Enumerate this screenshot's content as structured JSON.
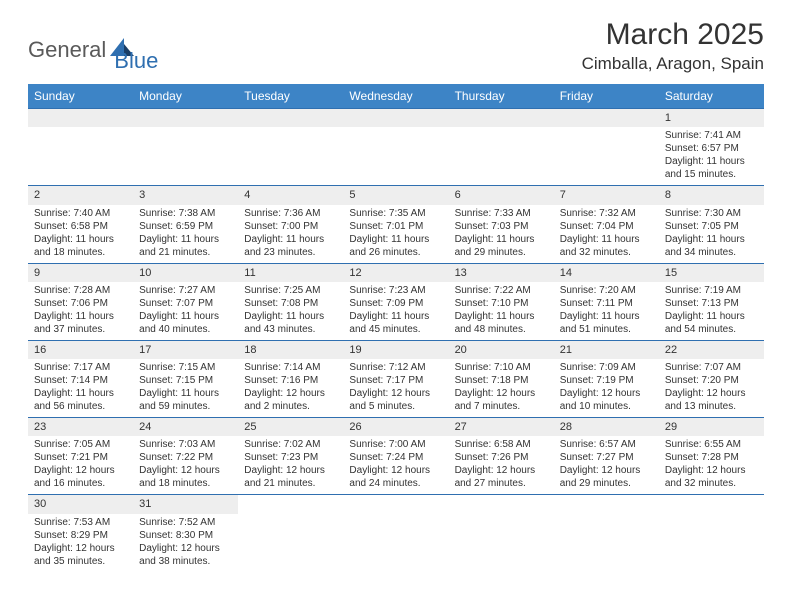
{
  "logo": {
    "text1": "General",
    "text2": "Blue",
    "tri_color1": "#2f6fb0",
    "tri_color2": "#1a3e66"
  },
  "title": "March 2025",
  "location": "Cimballa, Aragon, Spain",
  "weekdays": [
    "Sunday",
    "Monday",
    "Tuesday",
    "Wednesday",
    "Thursday",
    "Friday",
    "Saturday"
  ],
  "colors": {
    "header_bg": "#3d84c6",
    "border": "#2f6fb0",
    "daynum_bg": "#eeeeee"
  },
  "weeks": [
    [
      null,
      null,
      null,
      null,
      null,
      null,
      {
        "n": "1",
        "sunrise": "7:41 AM",
        "sunset": "6:57 PM",
        "daylight": "11 hours and 15 minutes."
      }
    ],
    [
      {
        "n": "2",
        "sunrise": "7:40 AM",
        "sunset": "6:58 PM",
        "daylight": "11 hours and 18 minutes."
      },
      {
        "n": "3",
        "sunrise": "7:38 AM",
        "sunset": "6:59 PM",
        "daylight": "11 hours and 21 minutes."
      },
      {
        "n": "4",
        "sunrise": "7:36 AM",
        "sunset": "7:00 PM",
        "daylight": "11 hours and 23 minutes."
      },
      {
        "n": "5",
        "sunrise": "7:35 AM",
        "sunset": "7:01 PM",
        "daylight": "11 hours and 26 minutes."
      },
      {
        "n": "6",
        "sunrise": "7:33 AM",
        "sunset": "7:03 PM",
        "daylight": "11 hours and 29 minutes."
      },
      {
        "n": "7",
        "sunrise": "7:32 AM",
        "sunset": "7:04 PM",
        "daylight": "11 hours and 32 minutes."
      },
      {
        "n": "8",
        "sunrise": "7:30 AM",
        "sunset": "7:05 PM",
        "daylight": "11 hours and 34 minutes."
      }
    ],
    [
      {
        "n": "9",
        "sunrise": "7:28 AM",
        "sunset": "7:06 PM",
        "daylight": "11 hours and 37 minutes."
      },
      {
        "n": "10",
        "sunrise": "7:27 AM",
        "sunset": "7:07 PM",
        "daylight": "11 hours and 40 minutes."
      },
      {
        "n": "11",
        "sunrise": "7:25 AM",
        "sunset": "7:08 PM",
        "daylight": "11 hours and 43 minutes."
      },
      {
        "n": "12",
        "sunrise": "7:23 AM",
        "sunset": "7:09 PM",
        "daylight": "11 hours and 45 minutes."
      },
      {
        "n": "13",
        "sunrise": "7:22 AM",
        "sunset": "7:10 PM",
        "daylight": "11 hours and 48 minutes."
      },
      {
        "n": "14",
        "sunrise": "7:20 AM",
        "sunset": "7:11 PM",
        "daylight": "11 hours and 51 minutes."
      },
      {
        "n": "15",
        "sunrise": "7:19 AM",
        "sunset": "7:13 PM",
        "daylight": "11 hours and 54 minutes."
      }
    ],
    [
      {
        "n": "16",
        "sunrise": "7:17 AM",
        "sunset": "7:14 PM",
        "daylight": "11 hours and 56 minutes."
      },
      {
        "n": "17",
        "sunrise": "7:15 AM",
        "sunset": "7:15 PM",
        "daylight": "11 hours and 59 minutes."
      },
      {
        "n": "18",
        "sunrise": "7:14 AM",
        "sunset": "7:16 PM",
        "daylight": "12 hours and 2 minutes."
      },
      {
        "n": "19",
        "sunrise": "7:12 AM",
        "sunset": "7:17 PM",
        "daylight": "12 hours and 5 minutes."
      },
      {
        "n": "20",
        "sunrise": "7:10 AM",
        "sunset": "7:18 PM",
        "daylight": "12 hours and 7 minutes."
      },
      {
        "n": "21",
        "sunrise": "7:09 AM",
        "sunset": "7:19 PM",
        "daylight": "12 hours and 10 minutes."
      },
      {
        "n": "22",
        "sunrise": "7:07 AM",
        "sunset": "7:20 PM",
        "daylight": "12 hours and 13 minutes."
      }
    ],
    [
      {
        "n": "23",
        "sunrise": "7:05 AM",
        "sunset": "7:21 PM",
        "daylight": "12 hours and 16 minutes."
      },
      {
        "n": "24",
        "sunrise": "7:03 AM",
        "sunset": "7:22 PM",
        "daylight": "12 hours and 18 minutes."
      },
      {
        "n": "25",
        "sunrise": "7:02 AM",
        "sunset": "7:23 PM",
        "daylight": "12 hours and 21 minutes."
      },
      {
        "n": "26",
        "sunrise": "7:00 AM",
        "sunset": "7:24 PM",
        "daylight": "12 hours and 24 minutes."
      },
      {
        "n": "27",
        "sunrise": "6:58 AM",
        "sunset": "7:26 PM",
        "daylight": "12 hours and 27 minutes."
      },
      {
        "n": "28",
        "sunrise": "6:57 AM",
        "sunset": "7:27 PM",
        "daylight": "12 hours and 29 minutes."
      },
      {
        "n": "29",
        "sunrise": "6:55 AM",
        "sunset": "7:28 PM",
        "daylight": "12 hours and 32 minutes."
      }
    ],
    [
      {
        "n": "30",
        "sunrise": "7:53 AM",
        "sunset": "8:29 PM",
        "daylight": "12 hours and 35 minutes."
      },
      {
        "n": "31",
        "sunrise": "7:52 AM",
        "sunset": "8:30 PM",
        "daylight": "12 hours and 38 minutes."
      },
      null,
      null,
      null,
      null,
      null
    ]
  ],
  "labels": {
    "sunrise": "Sunrise: ",
    "sunset": "Sunset: ",
    "daylight": "Daylight: "
  }
}
